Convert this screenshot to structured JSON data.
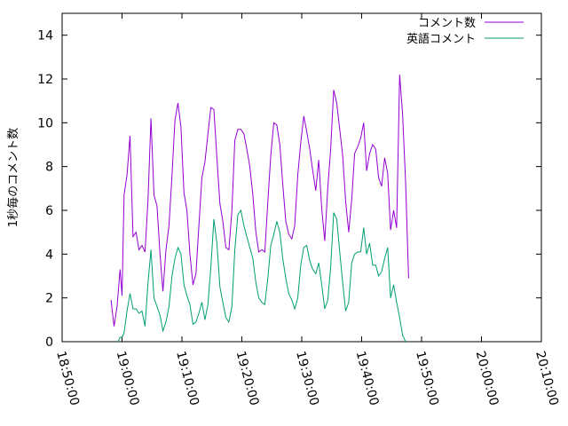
{
  "chart_data": {
    "type": "line",
    "title": "",
    "xlabel": "",
    "ylabel": "1秒毎のコメント数",
    "x_range": [
      "18:50:00",
      "20:10:00"
    ],
    "ylim": [
      0,
      15
    ],
    "grid": false,
    "legend_position": "top-right",
    "x_ticks": [
      "18:50:00",
      "19:00:00",
      "19:10:00",
      "19:20:00",
      "19:30:00",
      "19:40:00",
      "19:50:00",
      "20:00:00",
      "20:10:00"
    ],
    "y_ticks": [
      0,
      2,
      4,
      6,
      8,
      10,
      12,
      14
    ],
    "series": [
      {
        "name": "コメント数",
        "color": "#9400d3",
        "points": [
          [
            "18:58:10",
            1.9
          ],
          [
            "18:58:40",
            0.7
          ],
          [
            "18:59:10",
            1.6
          ],
          [
            "18:59:40",
            3.3
          ],
          [
            "19:00:00",
            2.1
          ],
          [
            "19:00:20",
            6.7
          ],
          [
            "19:00:50",
            7.6
          ],
          [
            "19:01:20",
            9.4
          ],
          [
            "19:01:50",
            4.8
          ],
          [
            "19:02:20",
            5.0
          ],
          [
            "19:02:50",
            4.2
          ],
          [
            "19:03:20",
            4.4
          ],
          [
            "19:03:50",
            4.1
          ],
          [
            "19:04:20",
            6.5
          ],
          [
            "19:04:50",
            10.2
          ],
          [
            "19:05:20",
            6.7
          ],
          [
            "19:05:50",
            6.2
          ],
          [
            "19:06:20",
            4.0
          ],
          [
            "19:06:50",
            2.3
          ],
          [
            "19:07:20",
            4.2
          ],
          [
            "19:07:50",
            5.3
          ],
          [
            "19:08:20",
            7.6
          ],
          [
            "19:08:50",
            10.1
          ],
          [
            "19:09:20",
            10.9
          ],
          [
            "19:09:50",
            9.8
          ],
          [
            "19:10:20",
            6.8
          ],
          [
            "19:10:50",
            6.0
          ],
          [
            "19:11:20",
            4.0
          ],
          [
            "19:11:50",
            2.6
          ],
          [
            "19:12:20",
            3.1
          ],
          [
            "19:12:50",
            5.3
          ],
          [
            "19:13:20",
            7.5
          ],
          [
            "19:13:50",
            8.2
          ],
          [
            "19:14:20",
            9.5
          ],
          [
            "19:14:50",
            10.7
          ],
          [
            "19:15:20",
            10.6
          ],
          [
            "19:15:50",
            8.4
          ],
          [
            "19:16:20",
            6.3
          ],
          [
            "19:16:50",
            5.5
          ],
          [
            "19:17:20",
            4.3
          ],
          [
            "19:17:50",
            4.2
          ],
          [
            "19:18:20",
            6.0
          ],
          [
            "19:18:50",
            9.2
          ],
          [
            "19:19:20",
            9.7
          ],
          [
            "19:19:50",
            9.7
          ],
          [
            "19:20:20",
            9.5
          ],
          [
            "19:20:50",
            8.8
          ],
          [
            "19:21:20",
            8.0
          ],
          [
            "19:21:50",
            6.7
          ],
          [
            "19:22:20",
            5.0
          ],
          [
            "19:22:50",
            4.1
          ],
          [
            "19:23:20",
            4.2
          ],
          [
            "19:23:50",
            4.1
          ],
          [
            "19:24:20",
            6.4
          ],
          [
            "19:24:50",
            8.5
          ],
          [
            "19:25:20",
            10.0
          ],
          [
            "19:25:50",
            9.9
          ],
          [
            "19:26:20",
            9.0
          ],
          [
            "19:26:50",
            7.2
          ],
          [
            "19:27:20",
            5.5
          ],
          [
            "19:27:50",
            4.9
          ],
          [
            "19:28:20",
            4.7
          ],
          [
            "19:28:50",
            5.3
          ],
          [
            "19:29:20",
            7.6
          ],
          [
            "19:29:50",
            9.1
          ],
          [
            "19:30:20",
            10.3
          ],
          [
            "19:30:50",
            9.6
          ],
          [
            "19:31:20",
            8.8
          ],
          [
            "19:31:50",
            7.8
          ],
          [
            "19:32:20",
            6.9
          ],
          [
            "19:32:50",
            8.3
          ],
          [
            "19:33:20",
            6.1
          ],
          [
            "19:33:50",
            4.6
          ],
          [
            "19:34:20",
            7.0
          ],
          [
            "19:34:50",
            8.8
          ],
          [
            "19:35:20",
            11.5
          ],
          [
            "19:35:50",
            10.9
          ],
          [
            "19:36:20",
            9.7
          ],
          [
            "19:36:50",
            8.5
          ],
          [
            "19:37:20",
            6.4
          ],
          [
            "19:37:50",
            5.0
          ],
          [
            "19:38:20",
            6.5
          ],
          [
            "19:38:50",
            8.6
          ],
          [
            "19:39:20",
            8.9
          ],
          [
            "19:39:50",
            9.3
          ],
          [
            "19:40:20",
            10.0
          ],
          [
            "19:40:50",
            7.8
          ],
          [
            "19:41:20",
            8.6
          ],
          [
            "19:41:50",
            9.0
          ],
          [
            "19:42:20",
            8.8
          ],
          [
            "19:42:50",
            7.5
          ],
          [
            "19:43:20",
            7.1
          ],
          [
            "19:43:50",
            8.4
          ],
          [
            "19:44:20",
            7.7
          ],
          [
            "19:44:50",
            5.1
          ],
          [
            "19:45:20",
            6.0
          ],
          [
            "19:45:50",
            5.2
          ],
          [
            "19:46:20",
            12.2
          ],
          [
            "19:46:50",
            10.4
          ],
          [
            "19:47:20",
            7.3
          ],
          [
            "19:47:50",
            2.9
          ]
        ]
      },
      {
        "name": "英語コメント",
        "color": "#009e73",
        "points": [
          [
            "18:59:20",
            0.0
          ],
          [
            "18:59:40",
            0.2
          ],
          [
            "19:00:00",
            0.2
          ],
          [
            "19:00:20",
            0.4
          ],
          [
            "19:00:50",
            1.4
          ],
          [
            "19:01:20",
            2.2
          ],
          [
            "19:01:50",
            1.5
          ],
          [
            "19:02:20",
            1.5
          ],
          [
            "19:02:50",
            1.3
          ],
          [
            "19:03:20",
            1.4
          ],
          [
            "19:03:50",
            0.7
          ],
          [
            "19:04:20",
            2.7
          ],
          [
            "19:04:50",
            4.2
          ],
          [
            "19:05:20",
            2.0
          ],
          [
            "19:05:50",
            1.6
          ],
          [
            "19:06:20",
            1.2
          ],
          [
            "19:06:50",
            0.5
          ],
          [
            "19:07:20",
            0.9
          ],
          [
            "19:07:50",
            1.6
          ],
          [
            "19:08:20",
            3.0
          ],
          [
            "19:08:50",
            3.8
          ],
          [
            "19:09:20",
            4.3
          ],
          [
            "19:09:50",
            4.0
          ],
          [
            "19:10:20",
            2.6
          ],
          [
            "19:10:50",
            2.1
          ],
          [
            "19:11:20",
            1.7
          ],
          [
            "19:11:50",
            0.8
          ],
          [
            "19:12:20",
            0.9
          ],
          [
            "19:12:50",
            1.3
          ],
          [
            "19:13:20",
            1.8
          ],
          [
            "19:13:50",
            1.0
          ],
          [
            "19:14:20",
            1.7
          ],
          [
            "19:14:50",
            3.4
          ],
          [
            "19:15:20",
            5.6
          ],
          [
            "19:15:50",
            4.5
          ],
          [
            "19:16:20",
            2.5
          ],
          [
            "19:16:50",
            1.8
          ],
          [
            "19:17:20",
            1.1
          ],
          [
            "19:17:50",
            0.9
          ],
          [
            "19:18:20",
            1.6
          ],
          [
            "19:18:50",
            4.2
          ],
          [
            "19:19:20",
            5.8
          ],
          [
            "19:19:50",
            6.0
          ],
          [
            "19:20:20",
            5.3
          ],
          [
            "19:20:50",
            4.8
          ],
          [
            "19:21:20",
            4.3
          ],
          [
            "19:21:50",
            3.8
          ],
          [
            "19:22:20",
            2.7
          ],
          [
            "19:22:50",
            2.0
          ],
          [
            "19:23:20",
            1.8
          ],
          [
            "19:23:50",
            1.7
          ],
          [
            "19:24:20",
            2.9
          ],
          [
            "19:24:50",
            4.4
          ],
          [
            "19:25:20",
            4.9
          ],
          [
            "19:25:50",
            5.5
          ],
          [
            "19:26:20",
            5.0
          ],
          [
            "19:26:50",
            3.8
          ],
          [
            "19:27:20",
            2.9
          ],
          [
            "19:27:50",
            2.2
          ],
          [
            "19:28:20",
            1.9
          ],
          [
            "19:28:50",
            1.5
          ],
          [
            "19:29:20",
            2.0
          ],
          [
            "19:29:50",
            3.5
          ],
          [
            "19:30:20",
            4.3
          ],
          [
            "19:30:50",
            4.4
          ],
          [
            "19:31:20",
            3.7
          ],
          [
            "19:31:50",
            3.3
          ],
          [
            "19:32:20",
            3.1
          ],
          [
            "19:32:50",
            3.6
          ],
          [
            "19:33:20",
            2.6
          ],
          [
            "19:33:50",
            1.5
          ],
          [
            "19:34:20",
            1.9
          ],
          [
            "19:34:50",
            3.4
          ],
          [
            "19:35:20",
            5.9
          ],
          [
            "19:35:50",
            5.6
          ],
          [
            "19:36:20",
            4.1
          ],
          [
            "19:36:50",
            2.7
          ],
          [
            "19:37:20",
            1.4
          ],
          [
            "19:37:50",
            1.8
          ],
          [
            "19:38:20",
            3.6
          ],
          [
            "19:38:50",
            4.0
          ],
          [
            "19:39:20",
            4.1
          ],
          [
            "19:39:50",
            4.1
          ],
          [
            "19:40:20",
            5.2
          ],
          [
            "19:40:50",
            4.0
          ],
          [
            "19:41:20",
            4.5
          ],
          [
            "19:41:50",
            3.5
          ],
          [
            "19:42:20",
            3.5
          ],
          [
            "19:42:50",
            3.0
          ],
          [
            "19:43:20",
            3.2
          ],
          [
            "19:43:50",
            3.8
          ],
          [
            "19:44:20",
            4.3
          ],
          [
            "19:44:50",
            2.0
          ],
          [
            "19:45:20",
            2.6
          ],
          [
            "19:45:50",
            1.8
          ],
          [
            "19:46:20",
            1.1
          ],
          [
            "19:46:50",
            0.3
          ],
          [
            "19:47:20",
            0.0
          ]
        ]
      }
    ]
  }
}
